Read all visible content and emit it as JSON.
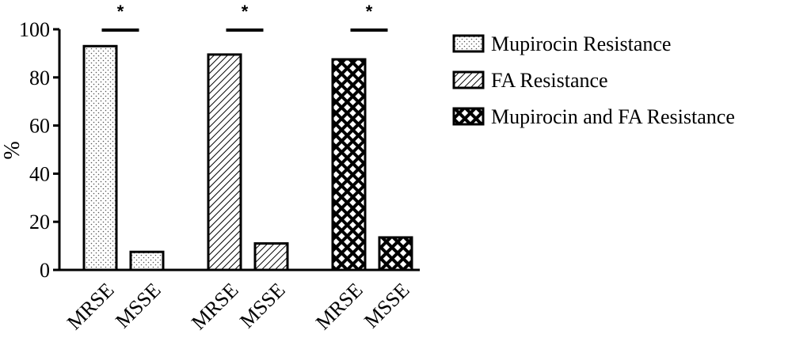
{
  "chart_data": {
    "type": "bar",
    "y_label": "%",
    "categories": [
      "MRSE",
      "MSSE"
    ],
    "series": [
      {
        "name": "Mupirocin Resistance",
        "color": "#000000",
        "pattern": "dots",
        "values": [
          93,
          7.5
        ]
      },
      {
        "name": "FA Resistance",
        "color": "#000000",
        "pattern": "hatch",
        "values": [
          89.5,
          11
        ]
      },
      {
        "name": "Mupirocin and FA Resistance",
        "color": "#000000",
        "pattern": "crosshatch",
        "values": [
          87.5,
          13.5
        ]
      }
    ],
    "significance": [
      "*",
      "*",
      "*"
    ],
    "ylim": [
      0,
      100
    ],
    "yticks": [
      0,
      20,
      40,
      60,
      80,
      100
    ],
    "grid": false,
    "legend": "right"
  }
}
